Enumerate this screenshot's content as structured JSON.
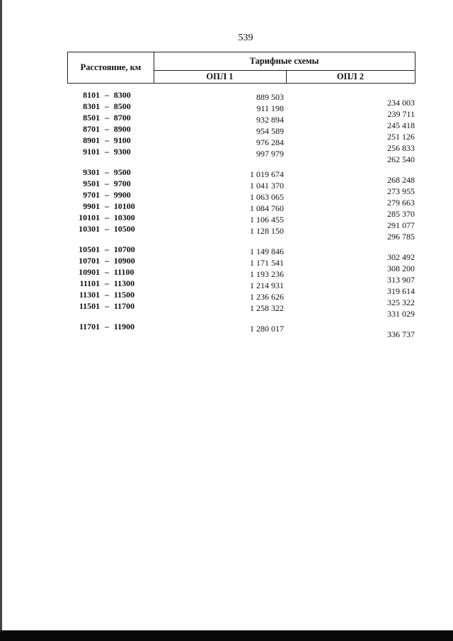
{
  "page_number": "539",
  "header": {
    "distance": "Расстояние, км",
    "tariff_schemes": "Тарифные схемы",
    "opl1": "ОПЛ 1",
    "opl2": "ОПЛ 2"
  },
  "groups": [
    [
      {
        "from": "8101",
        "to": "8300",
        "opl1": "889 503",
        "opl2": "234 003"
      },
      {
        "from": "8301",
        "to": "8500",
        "opl1": "911 198",
        "opl2": "239 711"
      },
      {
        "from": "8501",
        "to": "8700",
        "opl1": "932 894",
        "opl2": "245 418"
      },
      {
        "from": "8701",
        "to": "8900",
        "opl1": "954 589",
        "opl2": "251 126"
      },
      {
        "from": "8901",
        "to": "9100",
        "opl1": "976 284",
        "opl2": "256 833"
      },
      {
        "from": "9101",
        "to": "9300",
        "opl1": "997 979",
        "opl2": "262 540"
      }
    ],
    [
      {
        "from": "9301",
        "to": "9500",
        "opl1": "1 019 674",
        "opl2": "268 248"
      },
      {
        "from": "9501",
        "to": "9700",
        "opl1": "1 041 370",
        "opl2": "273 955"
      },
      {
        "from": "9701",
        "to": "9900",
        "opl1": "1 063 065",
        "opl2": "279 663"
      },
      {
        "from": "9901",
        "to": "10100",
        "opl1": "1 084 760",
        "opl2": "285 370"
      },
      {
        "from": "10101",
        "to": "10300",
        "opl1": "1 106 455",
        "opl2": "291 077"
      },
      {
        "from": "10301",
        "to": "10500",
        "opl1": "1 128 150",
        "opl2": "296 785"
      }
    ],
    [
      {
        "from": "10501",
        "to": "10700",
        "opl1": "1 149 846",
        "opl2": "302 492"
      },
      {
        "from": "10701",
        "to": "10900",
        "opl1": "1 171 541",
        "opl2": "308 200"
      },
      {
        "from": "10901",
        "to": "11100",
        "opl1": "1 193 236",
        "opl2": "313 907"
      },
      {
        "from": "11101",
        "to": "11300",
        "opl1": "1 214 931",
        "opl2": "319 614"
      },
      {
        "from": "11301",
        "to": "11500",
        "opl1": "1 236 626",
        "opl2": "325 322"
      },
      {
        "from": "11501",
        "to": "11700",
        "opl1": "1 258 322",
        "opl2": "331 029"
      }
    ],
    [
      {
        "from": "11701",
        "to": "11900",
        "opl1": "1 280 017",
        "opl2": "336 737"
      }
    ]
  ],
  "dash": "–"
}
